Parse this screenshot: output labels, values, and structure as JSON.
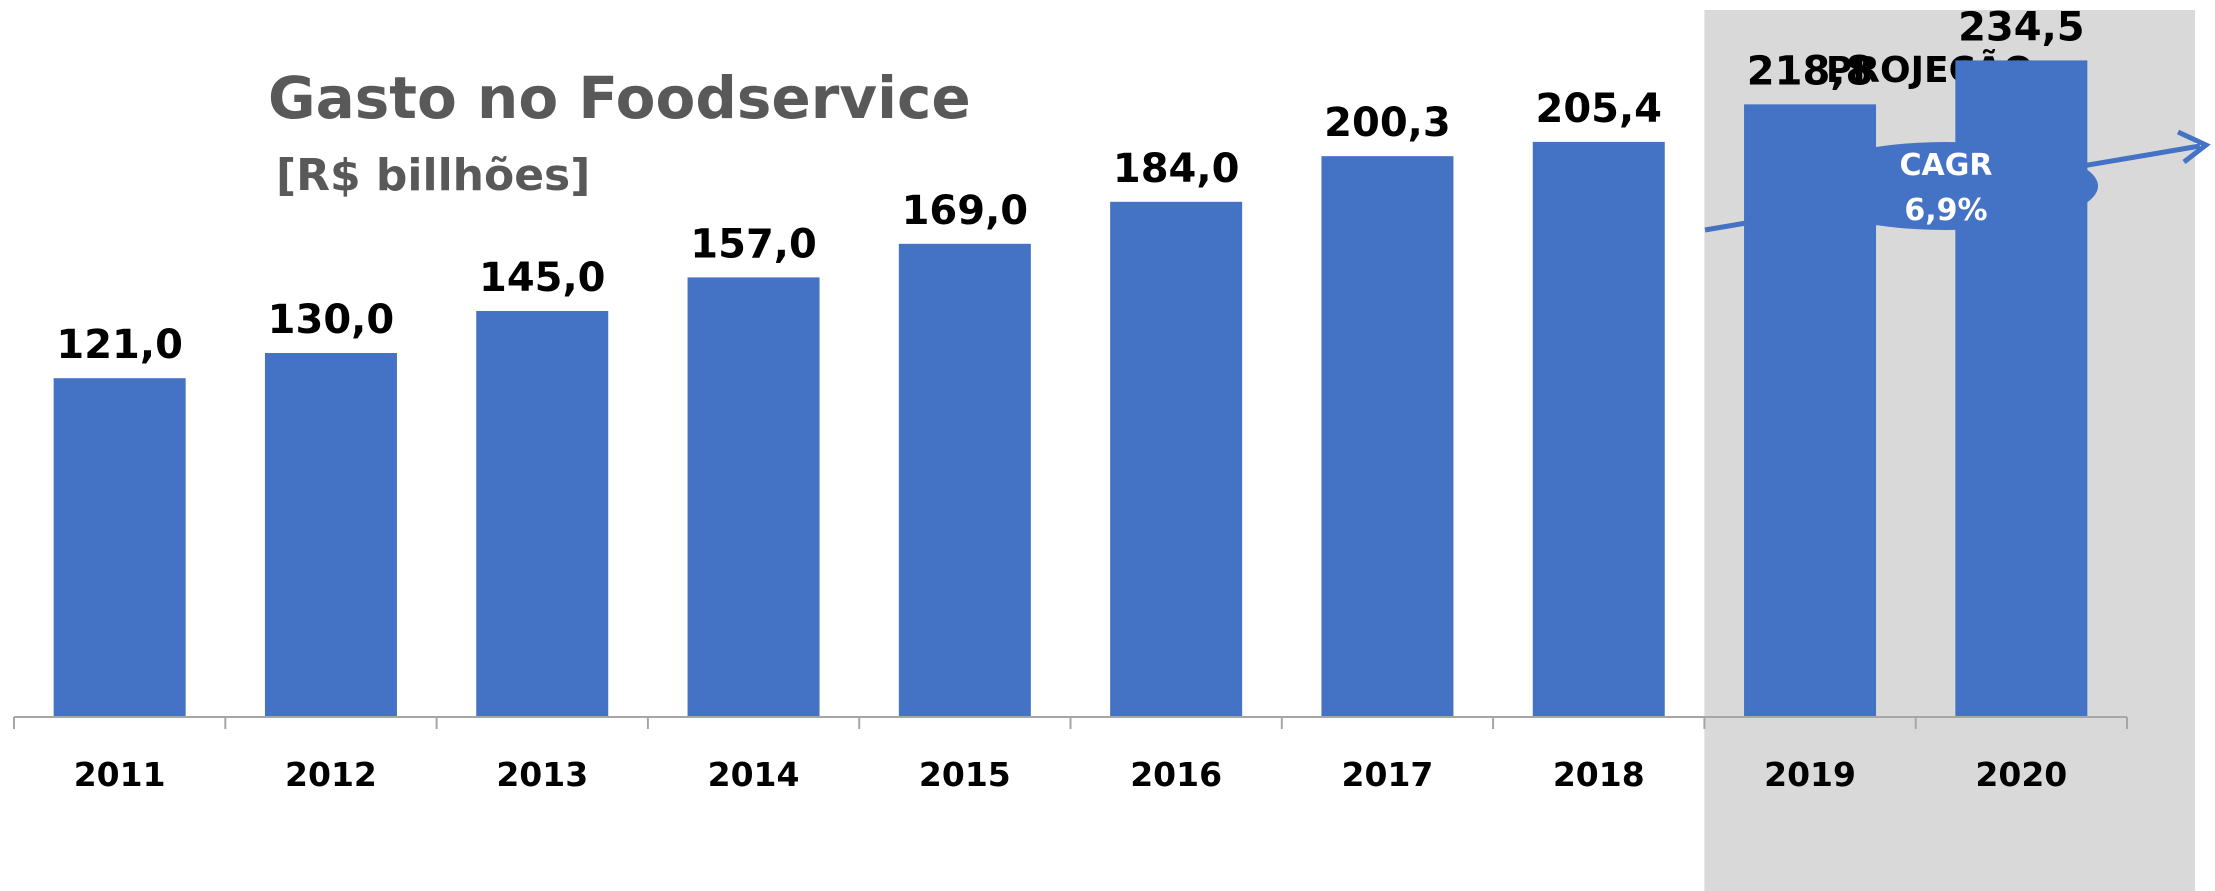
{
  "chart_data": {
    "type": "bar",
    "title": "Gasto no Foodservice",
    "subtitle": "[R$ billhões]",
    "categories": [
      "2011",
      "2012",
      "2013",
      "2014",
      "2015",
      "2016",
      "2017",
      "2018",
      "2019",
      "2020"
    ],
    "values": [
      121.0,
      130.0,
      145.0,
      157.0,
      169.0,
      184.0,
      200.3,
      205.4,
      218.8,
      234.5
    ],
    "value_labels": [
      "121,0",
      "130,0",
      "145,0",
      "157,0",
      "169,0",
      "184,0",
      "200,3",
      "205,4",
      "218,8",
      "234,5"
    ],
    "xlabel": "",
    "ylabel": "",
    "ylim": [
      0,
      250
    ],
    "grid": false,
    "projection": {
      "label": "PROJEÇÃO",
      "categories": [
        "2019",
        "2020"
      ]
    },
    "annotation": {
      "label_line1": "CAGR",
      "label_line2": "6,9%"
    },
    "colors": {
      "bar": "#4472c4",
      "projection_band": "#d9d9d9",
      "axis": "#a6a6a6",
      "title": "#595959"
    }
  }
}
